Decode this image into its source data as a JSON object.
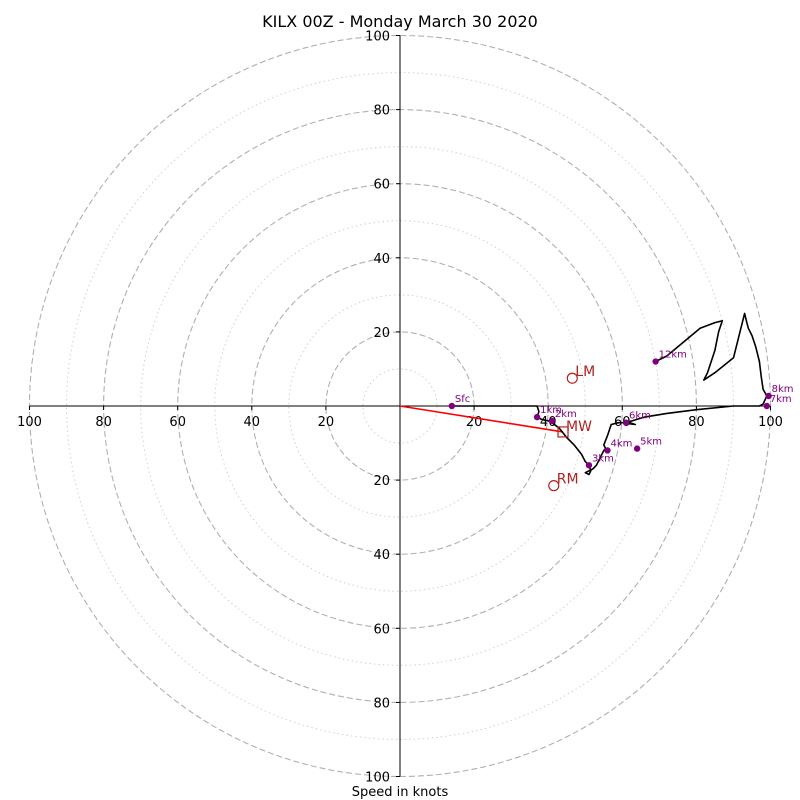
{
  "chart_data": {
    "type": "scatter",
    "title": "KILX 00Z - Monday March 30 2020",
    "xlabel": "Speed in knots",
    "ylabel": "",
    "xlim": [
      -100,
      100
    ],
    "ylim": [
      -100,
      100
    ],
    "rings": {
      "dashed": [
        20,
        40,
        60,
        80,
        100
      ],
      "dotted": [
        10,
        30,
        50,
        70,
        90
      ]
    },
    "ticks": {
      "x_left": {
        "values": [
          -100,
          -80,
          -60,
          -40,
          -20
        ],
        "labels": [
          "100",
          "80",
          "60",
          "40",
          "20"
        ]
      },
      "x_right": {
        "values": [
          20,
          40,
          60,
          80,
          100
        ],
        "labels": [
          "20",
          "40",
          "60",
          "80",
          "100"
        ]
      },
      "y_up": {
        "values": [
          20,
          40,
          60,
          80,
          100
        ],
        "labels": [
          "20",
          "40",
          "60",
          "80",
          "100"
        ]
      },
      "y_down": {
        "values": [
          -20,
          -40,
          -60,
          -80,
          -100
        ],
        "labels": [
          "20",
          "40",
          "60",
          "80",
          "100"
        ]
      }
    },
    "trace": {
      "u": [
        14,
        20,
        26,
        32,
        36,
        37,
        37.5,
        37,
        38,
        39,
        40,
        41,
        43,
        45,
        47,
        49,
        50,
        51,
        51.5,
        51,
        50,
        51,
        52,
        53,
        54,
        55,
        55.5,
        55,
        56,
        57,
        59,
        61,
        62,
        63.5,
        62,
        61,
        66,
        72,
        80,
        90,
        94,
        97,
        98,
        99,
        98,
        97.5,
        97,
        96,
        95,
        94,
        93.5,
        93,
        90,
        85,
        82,
        83,
        85,
        86,
        87,
        85,
        81,
        75,
        72,
        69
      ],
      "v": [
        0,
        0,
        0,
        0,
        0,
        0,
        -1.5,
        -3,
        -3.5,
        -3.8,
        -4,
        -4.5,
        -6,
        -8.5,
        -10.5,
        -13,
        -15,
        -16,
        -17.5,
        -18.5,
        -18,
        -17.5,
        -17,
        -16,
        -14,
        -12,
        -11.5,
        -10.5,
        -8,
        -5,
        -4.5,
        -4.5,
        -4.8,
        -5,
        -4.5,
        -4.5,
        -3,
        -2,
        -1,
        0,
        0,
        0,
        0.5,
        2.7,
        4.5,
        8,
        12,
        16,
        19,
        21,
        23,
        25,
        13,
        9,
        7,
        9,
        15,
        20,
        23,
        22.5,
        21,
        16,
        13.5,
        12
      ]
    },
    "markers": [
      {
        "label": "Sfc",
        "u": 14,
        "v": 0
      },
      {
        "label": "1km",
        "u": 37,
        "v": -3
      },
      {
        "label": "2km",
        "u": 41,
        "v": -4
      },
      {
        "label": "3km",
        "u": 51,
        "v": -16
      },
      {
        "label": "4km",
        "u": 56,
        "v": -12
      },
      {
        "label": "5km",
        "u": 64,
        "v": -11.5
      },
      {
        "label": "6km",
        "u": 61,
        "v": -4.5
      },
      {
        "label": "7km",
        "u": 99,
        "v": 0
      },
      {
        "label": "8km",
        "u": 99.5,
        "v": 2.7
      },
      {
        "label": "12km",
        "u": 69,
        "v": 12
      }
    ],
    "storm_motion": {
      "mean_wind": {
        "label": "MW",
        "u": 44,
        "v": -7
      },
      "left_mover": {
        "label": "LM",
        "u": 46.5,
        "v": 7.5
      },
      "right_mover": {
        "label": "RM",
        "u": 41.5,
        "v": -21.5
      }
    },
    "colors": {
      "trace": "#000000",
      "markers": "#800080",
      "storm_motion": "#b22222",
      "mean_wind_vector": "#ff0000",
      "grid": "#b0b0b0"
    }
  }
}
